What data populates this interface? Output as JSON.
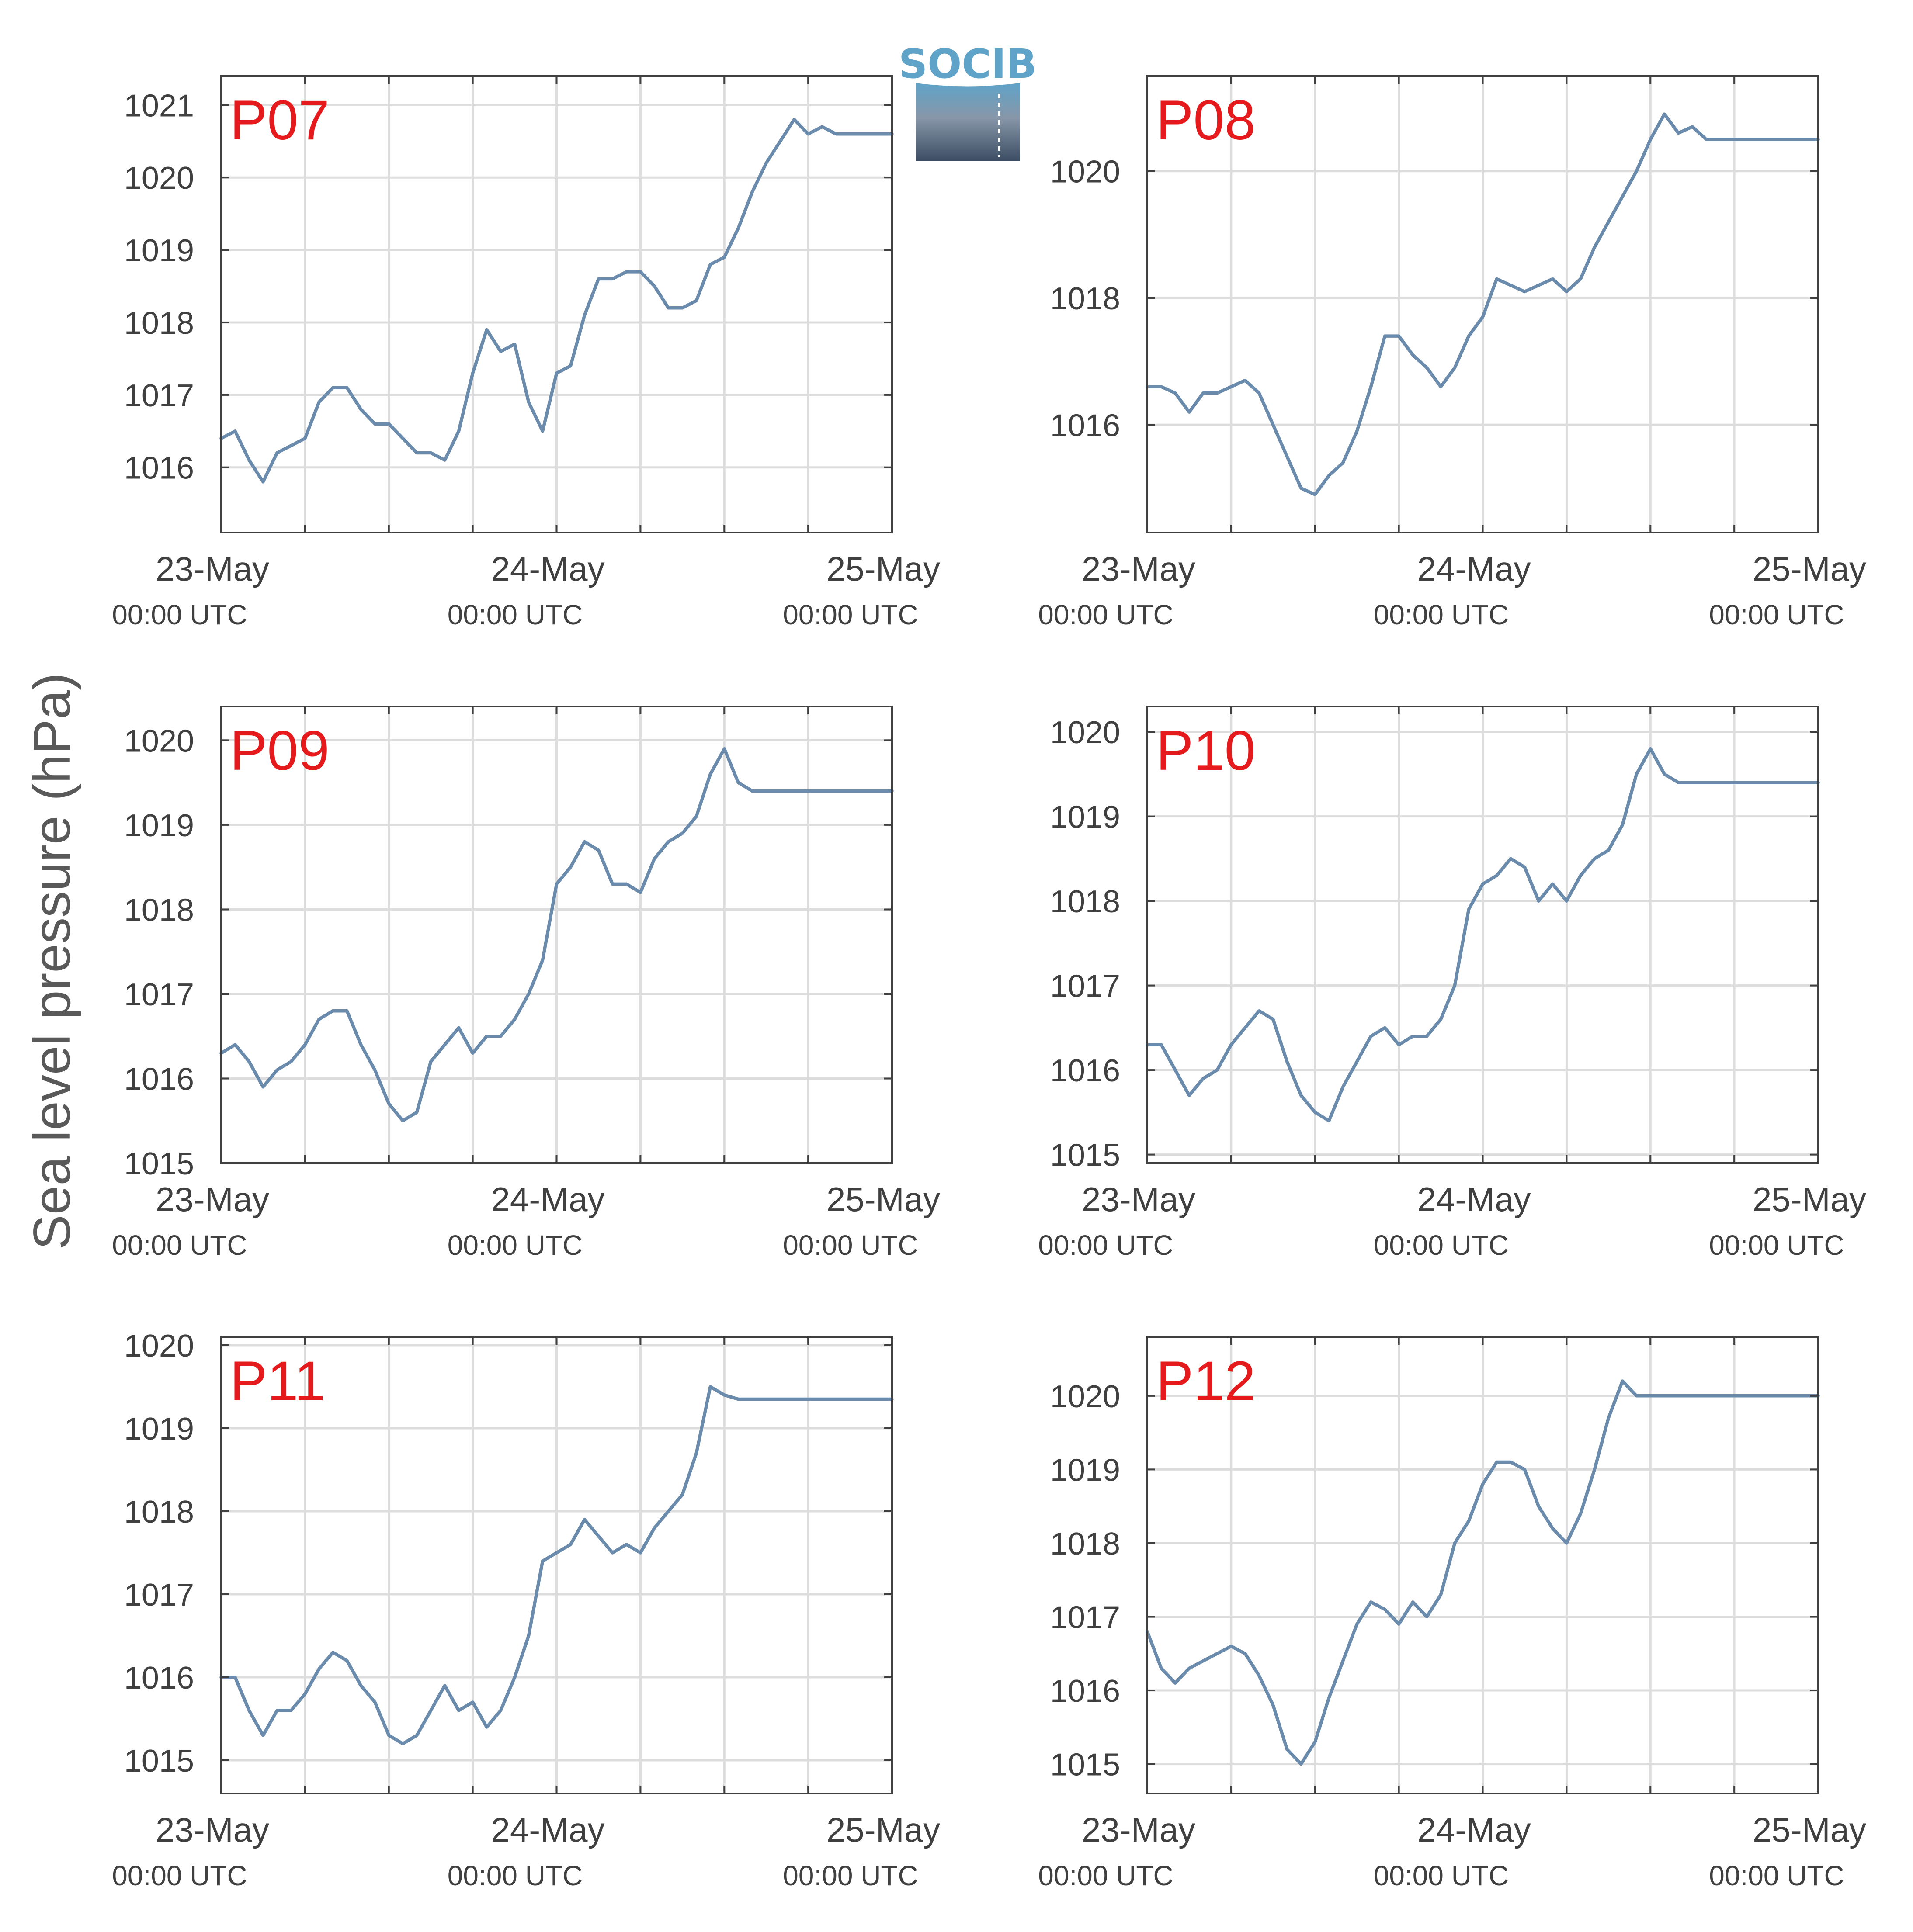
{
  "figure": {
    "ylabel": "Sea level pressure (hPa)",
    "logo_text": "SOCIB"
  },
  "colors": {
    "line": "#6b8bad",
    "panel_label": "#e41a1c",
    "grid": "#dddddd",
    "axes": "#404040",
    "logo_top": "#5fa3c8",
    "logo_bottom": "#3c4e64"
  },
  "chart_data": [
    {
      "type": "line",
      "panel_label": "P07",
      "x_ticks": [
        {
          "date": "23-May",
          "time": "00:00 UTC"
        },
        {
          "date": "24-May",
          "time": "00:00 UTC"
        },
        {
          "date": "25-May",
          "time": "00:00 UTC"
        }
      ],
      "x_range_hours": [
        0,
        48
      ],
      "grid": true,
      "ylim": [
        1015.1,
        1021.4
      ],
      "yticks": [
        1016,
        1017,
        1018,
        1019,
        1020,
        1021
      ],
      "x": [
        0,
        1,
        2,
        3,
        4,
        5,
        6,
        7,
        8,
        9,
        10,
        11,
        12,
        13,
        14,
        15,
        16,
        17,
        18,
        19,
        20,
        21,
        22,
        23,
        24,
        25,
        26,
        27,
        28,
        29,
        30,
        31,
        32,
        33,
        34,
        35,
        36,
        37,
        38,
        39,
        40,
        41,
        42,
        43,
        44,
        45,
        46,
        47,
        48
      ],
      "values": [
        1016.4,
        1016.5,
        1016.1,
        1015.8,
        1016.2,
        1016.3,
        1016.4,
        1016.9,
        1017.1,
        1017.1,
        1016.8,
        1016.6,
        1016.6,
        1016.4,
        1016.2,
        1016.2,
        1016.1,
        1016.5,
        1017.3,
        1017.9,
        1017.6,
        1017.7,
        1016.9,
        1016.5,
        1017.3,
        1017.4,
        1018.1,
        1018.6,
        1018.6,
        1018.7,
        1018.7,
        1018.5,
        1018.2,
        1018.2,
        1018.3,
        1018.8,
        1018.9,
        1019.3,
        1019.8,
        1020.2,
        1020.5,
        1020.8,
        1020.6,
        1020.7,
        1020.6,
        1020.6,
        1020.6,
        1020.6,
        1020.6
      ]
    },
    {
      "type": "line",
      "panel_label": "P08",
      "x_ticks": [
        {
          "date": "23-May",
          "time": "00:00 UTC"
        },
        {
          "date": "24-May",
          "time": "00:00 UTC"
        },
        {
          "date": "25-May",
          "time": "00:00 UTC"
        }
      ],
      "x_range_hours": [
        0,
        48
      ],
      "grid": true,
      "ylim": [
        1014.3,
        1021.5
      ],
      "yticks": [
        1016,
        1018,
        1020
      ],
      "x": [
        0,
        1,
        2,
        3,
        4,
        5,
        6,
        7,
        8,
        9,
        10,
        11,
        12,
        13,
        14,
        15,
        16,
        17,
        18,
        19,
        20,
        21,
        22,
        23,
        24,
        25,
        26,
        27,
        28,
        29,
        30,
        31,
        32,
        33,
        34,
        35,
        36,
        37,
        38,
        39,
        40,
        41,
        42,
        43,
        44,
        45,
        46,
        47,
        48
      ],
      "values": [
        1016.6,
        1016.6,
        1016.5,
        1016.2,
        1016.5,
        1016.5,
        1016.6,
        1016.7,
        1016.5,
        1016.0,
        1015.5,
        1015.0,
        1014.9,
        1015.2,
        1015.4,
        1015.9,
        1016.6,
        1017.4,
        1017.4,
        1017.1,
        1016.9,
        1016.6,
        1016.9,
        1017.4,
        1017.7,
        1018.3,
        1018.2,
        1018.1,
        1018.2,
        1018.3,
        1018.1,
        1018.3,
        1018.8,
        1019.2,
        1019.6,
        1020.0,
        1020.5,
        1020.9,
        1020.6,
        1020.7,
        1020.5,
        1020.5,
        1020.5,
        1020.5,
        1020.5,
        1020.5,
        1020.5,
        1020.5,
        1020.5
      ]
    },
    {
      "type": "line",
      "panel_label": "P09",
      "x_ticks": [
        {
          "date": "23-May",
          "time": "00:00 UTC"
        },
        {
          "date": "24-May",
          "time": "00:00 UTC"
        },
        {
          "date": "25-May",
          "time": "00:00 UTC"
        }
      ],
      "x_range_hours": [
        0,
        48
      ],
      "grid": true,
      "ylim": [
        1015.0,
        1020.4
      ],
      "yticks": [
        1015,
        1016,
        1017,
        1018,
        1019,
        1020
      ],
      "x": [
        0,
        1,
        2,
        3,
        4,
        5,
        6,
        7,
        8,
        9,
        10,
        11,
        12,
        13,
        14,
        15,
        16,
        17,
        18,
        19,
        20,
        21,
        22,
        23,
        24,
        25,
        26,
        27,
        28,
        29,
        30,
        31,
        32,
        33,
        34,
        35,
        36,
        37,
        38,
        39,
        40,
        41,
        42,
        43,
        44,
        45,
        46,
        47,
        48
      ],
      "values": [
        1016.3,
        1016.4,
        1016.2,
        1015.9,
        1016.1,
        1016.2,
        1016.4,
        1016.7,
        1016.8,
        1016.8,
        1016.4,
        1016.1,
        1015.7,
        1015.5,
        1015.6,
        1016.2,
        1016.4,
        1016.6,
        1016.3,
        1016.5,
        1016.5,
        1016.7,
        1017.0,
        1017.4,
        1018.3,
        1018.5,
        1018.8,
        1018.7,
        1018.3,
        1018.3,
        1018.2,
        1018.6,
        1018.8,
        1018.9,
        1019.1,
        1019.6,
        1019.9,
        1019.5,
        1019.4,
        1019.4,
        1019.4,
        1019.4,
        1019.4,
        1019.4,
        1019.4,
        1019.4,
        1019.4,
        1019.4,
        1019.4
      ]
    },
    {
      "type": "line",
      "panel_label": "P10",
      "x_ticks": [
        {
          "date": "23-May",
          "time": "00:00 UTC"
        },
        {
          "date": "24-May",
          "time": "00:00 UTC"
        },
        {
          "date": "25-May",
          "time": "00:00 UTC"
        }
      ],
      "x_range_hours": [
        0,
        48
      ],
      "grid": true,
      "ylim": [
        1014.9,
        1020.3
      ],
      "yticks": [
        1015,
        1016,
        1017,
        1018,
        1019,
        1020
      ],
      "x": [
        0,
        1,
        2,
        3,
        4,
        5,
        6,
        7,
        8,
        9,
        10,
        11,
        12,
        13,
        14,
        15,
        16,
        17,
        18,
        19,
        20,
        21,
        22,
        23,
        24,
        25,
        26,
        27,
        28,
        29,
        30,
        31,
        32,
        33,
        34,
        35,
        36,
        37,
        38,
        39,
        40,
        41,
        42,
        43,
        44,
        45,
        46,
        47,
        48
      ],
      "values": [
        1016.3,
        1016.3,
        1016.0,
        1015.7,
        1015.9,
        1016.0,
        1016.3,
        1016.5,
        1016.7,
        1016.6,
        1016.1,
        1015.7,
        1015.5,
        1015.4,
        1015.8,
        1016.1,
        1016.4,
        1016.5,
        1016.3,
        1016.4,
        1016.4,
        1016.6,
        1017.0,
        1017.9,
        1018.2,
        1018.3,
        1018.5,
        1018.4,
        1018.0,
        1018.2,
        1018.0,
        1018.3,
        1018.5,
        1018.6,
        1018.9,
        1019.5,
        1019.8,
        1019.5,
        1019.4,
        1019.4,
        1019.4,
        1019.4,
        1019.4,
        1019.4,
        1019.4,
        1019.4,
        1019.4,
        1019.4,
        1019.4
      ]
    },
    {
      "type": "line",
      "panel_label": "P11",
      "x_ticks": [
        {
          "date": "23-May",
          "time": "00:00 UTC"
        },
        {
          "date": "24-May",
          "time": "00:00 UTC"
        },
        {
          "date": "25-May",
          "time": "00:00 UTC"
        }
      ],
      "x_range_hours": [
        0,
        48
      ],
      "grid": true,
      "ylim": [
        1014.6,
        1020.1
      ],
      "yticks": [
        1015,
        1016,
        1017,
        1018,
        1019,
        1020
      ],
      "x": [
        0,
        1,
        2,
        3,
        4,
        5,
        6,
        7,
        8,
        9,
        10,
        11,
        12,
        13,
        14,
        15,
        16,
        17,
        18,
        19,
        20,
        21,
        22,
        23,
        24,
        25,
        26,
        27,
        28,
        29,
        30,
        31,
        32,
        33,
        34,
        35,
        36,
        37,
        38,
        39,
        40,
        41,
        42,
        43,
        44,
        45,
        46,
        47,
        48
      ],
      "values": [
        1016.0,
        1016.0,
        1015.6,
        1015.3,
        1015.6,
        1015.6,
        1015.8,
        1016.1,
        1016.3,
        1016.2,
        1015.9,
        1015.7,
        1015.3,
        1015.2,
        1015.3,
        1015.6,
        1015.9,
        1015.6,
        1015.7,
        1015.4,
        1015.6,
        1016.0,
        1016.5,
        1017.4,
        1017.5,
        1017.6,
        1017.9,
        1017.7,
        1017.5,
        1017.6,
        1017.5,
        1017.8,
        1018.0,
        1018.2,
        1018.7,
        1019.5,
        1019.4,
        1019.35,
        1019.35,
        1019.35,
        1019.35,
        1019.35,
        1019.35,
        1019.35,
        1019.35,
        1019.35,
        1019.35,
        1019.35,
        1019.35
      ]
    },
    {
      "type": "line",
      "panel_label": "P12",
      "x_ticks": [
        {
          "date": "23-May",
          "time": "00:00 UTC"
        },
        {
          "date": "24-May",
          "time": "00:00 UTC"
        },
        {
          "date": "25-May",
          "time": "00:00 UTC"
        }
      ],
      "x_range_hours": [
        0,
        48
      ],
      "grid": true,
      "ylim": [
        1014.6,
        1020.8
      ],
      "yticks": [
        1015,
        1016,
        1017,
        1018,
        1019,
        1020
      ],
      "x": [
        0,
        1,
        2,
        3,
        4,
        5,
        6,
        7,
        8,
        9,
        10,
        11,
        12,
        13,
        14,
        15,
        16,
        17,
        18,
        19,
        20,
        21,
        22,
        23,
        24,
        25,
        26,
        27,
        28,
        29,
        30,
        31,
        32,
        33,
        34,
        35,
        36,
        37,
        38,
        39,
        40,
        41,
        42,
        43,
        44,
        45,
        46,
        47,
        48
      ],
      "values": [
        1016.8,
        1016.3,
        1016.1,
        1016.3,
        1016.4,
        1016.5,
        1016.6,
        1016.5,
        1016.2,
        1015.8,
        1015.2,
        1015.0,
        1015.3,
        1015.9,
        1016.4,
        1016.9,
        1017.2,
        1017.1,
        1016.9,
        1017.2,
        1017.0,
        1017.3,
        1018.0,
        1018.3,
        1018.8,
        1019.1,
        1019.1,
        1019.0,
        1018.5,
        1018.2,
        1018.0,
        1018.4,
        1019.0,
        1019.7,
        1020.2,
        1020.0,
        1020.0,
        1020.0,
        1020.0,
        1020.0,
        1020.0,
        1020.0,
        1020.0,
        1020.0,
        1020.0,
        1020.0,
        1020.0,
        1020.0,
        1020.0
      ]
    }
  ]
}
